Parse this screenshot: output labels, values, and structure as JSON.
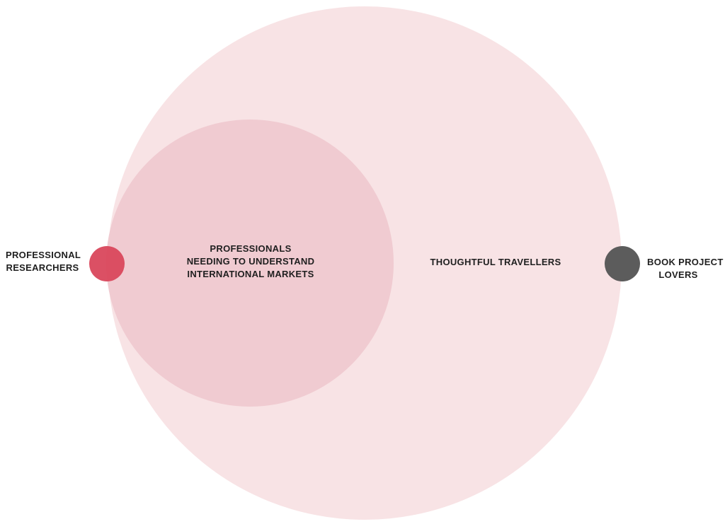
{
  "diagram": {
    "colors": {
      "outer_circle": "#f8e3e5",
      "inner_circle": "#f0cbd1",
      "researchers_dot": "#d9475c",
      "book_dot": "#5c5c5c",
      "text": "#1f1f1f"
    },
    "circles": {
      "thoughtful_travellers": {
        "label": "THOUGHTFUL TRAVELLERS"
      },
      "professionals": {
        "lines": [
          "PROFESSIONALS",
          "NEEDING TO UNDERSTAND",
          "INTERNATIONAL MARKETS"
        ]
      }
    },
    "markers": {
      "professional_researchers": {
        "lines": [
          "PROFESSIONAL",
          "RESEARCHERS"
        ]
      },
      "book_project_lovers": {
        "lines": [
          "BOOK PROJECT",
          "LOVERS"
        ]
      }
    }
  }
}
